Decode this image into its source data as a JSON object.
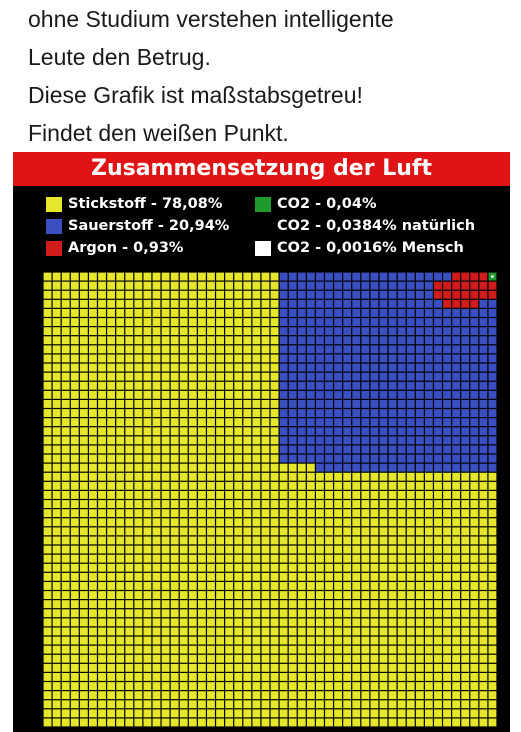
{
  "caption": {
    "lines": [
      "ohne Studium verstehen intelligente",
      "Leute den Betrug.",
      "Diese Grafik ist maßstabsgetreu!",
      "Findet den weißen Punkt."
    ]
  },
  "chart_data": {
    "type": "heatmap",
    "title": "Zusammensetzung der Luft",
    "grid": {
      "columns": 50,
      "rows": 50,
      "total_cells": 2500
    },
    "categories": [
      {
        "label": "Stickstoff - 78,08%",
        "name": "Stickstoff",
        "percent": 78.08,
        "color": "#e6e62a"
      },
      {
        "label": "Sauerstoff - 20,94%",
        "name": "Sauerstoff",
        "percent": 20.94,
        "color": "#3a4fc0"
      },
      {
        "label": "Argon - 0,93%",
        "name": "Argon",
        "percent": 0.93,
        "color": "#d21c1c"
      },
      {
        "label": "CO2 - 0,04%",
        "name": "CO2",
        "percent": 0.04,
        "color": "#1f9a2c"
      },
      {
        "label": "CO2 - 0,0384% natürlich",
        "name": "CO2 natürlich",
        "percent": 0.0384,
        "color": null
      },
      {
        "label": "CO2 - 0,0016% Mensch",
        "name": "CO2 Mensch",
        "percent": 0.0016,
        "color": "#ffffff"
      }
    ],
    "legend_position": "top"
  },
  "colors": {
    "background": "#000000",
    "title_bar": "#e01414",
    "gridline": "#000000"
  }
}
